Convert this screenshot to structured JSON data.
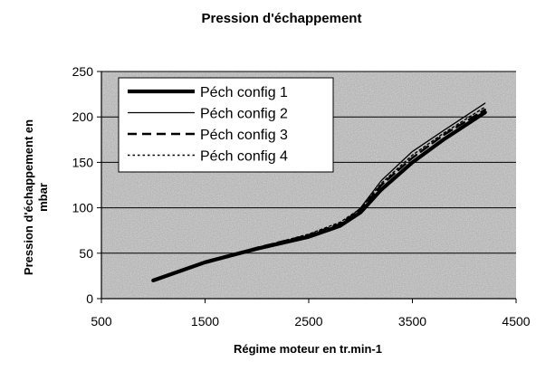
{
  "chart_data": {
    "type": "line",
    "title": "Pression d'échappement",
    "xlabel": "Régime moteur en tr.min-1",
    "ylabel_lines": [
      "Pression d'échappement en",
      "mbar"
    ],
    "xlim": [
      500,
      4500
    ],
    "ylim": [
      0,
      250
    ],
    "xticks": [
      500,
      1500,
      2500,
      3500,
      4500
    ],
    "yticks": [
      0,
      50,
      100,
      150,
      200,
      250
    ],
    "grid": "horizontal",
    "legend_position": "top-left inside plot",
    "colors": {
      "plot_background": "#a8a8a8",
      "line": "#000000",
      "legend_background": "#ffffff"
    },
    "series": [
      {
        "name": "Péch config 1",
        "style": "thick-solid",
        "x": [
          1000,
          1500,
          2000,
          2500,
          2800,
          3000,
          3200,
          3500,
          3800,
          4200
        ],
        "y": [
          20,
          40,
          55,
          68,
          80,
          95,
          120,
          150,
          175,
          205
        ]
      },
      {
        "name": "Péch config 2",
        "style": "thin-solid",
        "x": [
          1000,
          1500,
          2000,
          2500,
          2800,
          3000,
          3200,
          3500,
          3800,
          4200
        ],
        "y": [
          20,
          40,
          55,
          68,
          80,
          100,
          130,
          162,
          185,
          215
        ]
      },
      {
        "name": "Péch config 3",
        "style": "dashed",
        "x": [
          1000,
          1500,
          2000,
          2500,
          2800,
          3000,
          3200,
          3500,
          3800,
          4200
        ],
        "y": [
          20,
          40,
          56,
          70,
          82,
          98,
          125,
          155,
          180,
          208
        ]
      },
      {
        "name": "Péch config 4",
        "style": "dotted",
        "x": [
          1000,
          1500,
          2000,
          2500,
          2800,
          3000,
          3200,
          3500,
          3800,
          4200
        ],
        "y": [
          20,
          41,
          56,
          71,
          84,
          99,
          127,
          158,
          182,
          211
        ]
      }
    ]
  }
}
